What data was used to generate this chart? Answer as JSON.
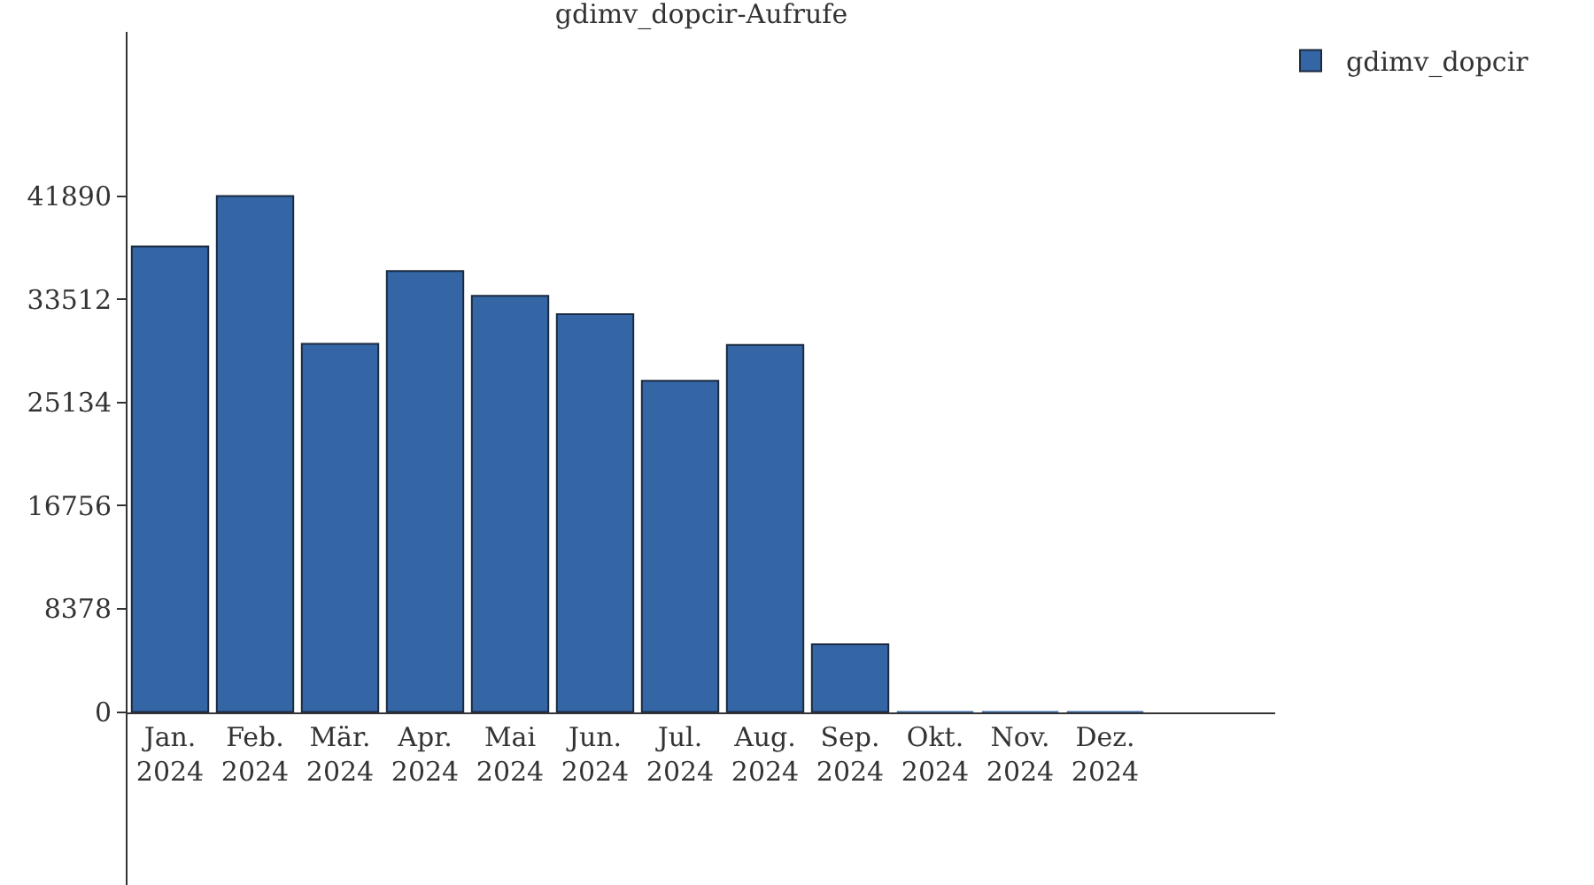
{
  "chart_data": {
    "type": "bar",
    "title": "gdimv_dopcir-Aufrufe",
    "categories": [
      "Jan.\n2024",
      "Feb.\n2024",
      "Mär.\n2024",
      "Apr.\n2024",
      "Mai\n2024",
      "Jun.\n2024",
      "Jul.\n2024",
      "Aug.\n2024",
      "Sep.\n2024",
      "Okt.\n2024",
      "Nov.\n2024",
      "Dez.\n2024"
    ],
    "series": [
      {
        "name": "gdimv_dopcir",
        "color": "#3465a4",
        "values": [
          37800,
          41900,
          29900,
          35800,
          33800,
          32300,
          26900,
          29800,
          5500,
          0,
          0,
          0
        ]
      }
    ],
    "ylim": [
      -14040,
      55220
    ],
    "yticks": [
      0,
      8378,
      16756,
      25134,
      33512,
      41890
    ],
    "legend": "top right"
  }
}
